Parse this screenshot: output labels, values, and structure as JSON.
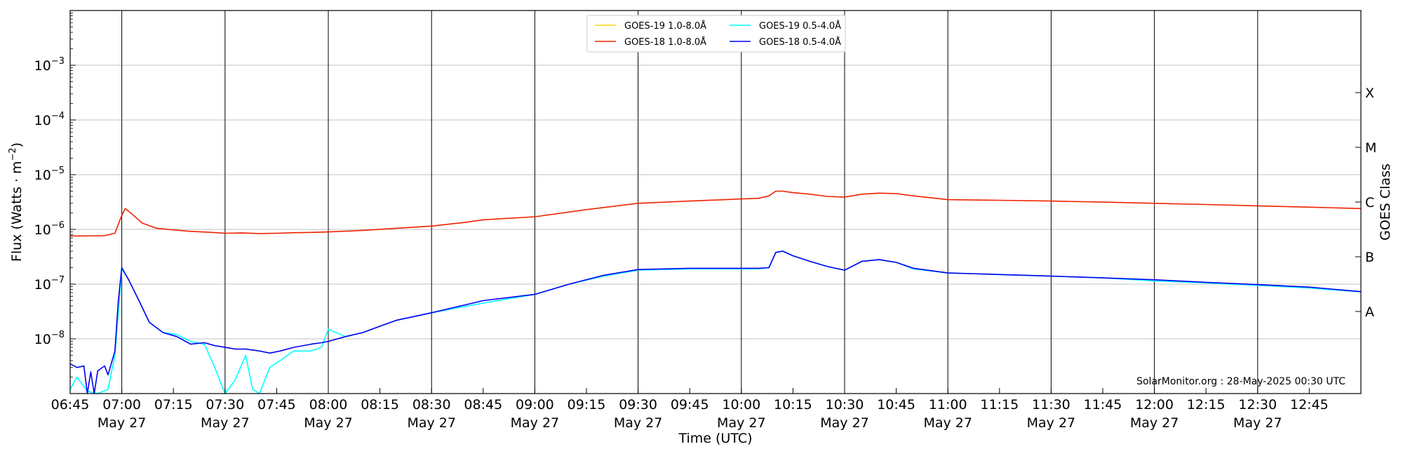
{
  "chart_data": {
    "type": "line",
    "ylabel_main": "Flux (Watts · m",
    "ylabel_sup": "−2",
    "ylabel_close": ")",
    "xlabel": "Time (UTC)",
    "right_label": "GOES Class",
    "yscale": "log",
    "ylim": [
      1e-09,
      0.01
    ],
    "xlim": [
      "06:45",
      "13:00"
    ],
    "grid": true,
    "legend_position": "top-center",
    "watermark": "SolarMonitor.org : 28-May-2025 00:30 UTC",
    "y_ticks": [
      {
        "exp": -8,
        "base": "10",
        "sup": "−8"
      },
      {
        "exp": -7,
        "base": "10",
        "sup": "−7"
      },
      {
        "exp": -6,
        "base": "10",
        "sup": "−6"
      },
      {
        "exp": -5,
        "base": "10",
        "sup": "−5"
      },
      {
        "exp": -4,
        "base": "10",
        "sup": "−4"
      },
      {
        "exp": -3,
        "base": "10",
        "sup": "−3"
      }
    ],
    "goes_classes": [
      {
        "label": "A",
        "exp": -7.5
      },
      {
        "label": "B",
        "exp": -6.5
      },
      {
        "label": "C",
        "exp": -5.5
      },
      {
        "label": "M",
        "exp": -4.5
      },
      {
        "label": "X",
        "exp": -3.5
      }
    ],
    "x_ticks": [
      {
        "time": "06:45",
        "date": ""
      },
      {
        "time": "07:00",
        "date": "May 27"
      },
      {
        "time": "07:15",
        "date": ""
      },
      {
        "time": "07:30",
        "date": "May 27"
      },
      {
        "time": "07:45",
        "date": ""
      },
      {
        "time": "08:00",
        "date": "May 27"
      },
      {
        "time": "08:15",
        "date": ""
      },
      {
        "time": "08:30",
        "date": "May 27"
      },
      {
        "time": "08:45",
        "date": ""
      },
      {
        "time": "09:00",
        "date": "May 27"
      },
      {
        "time": "09:15",
        "date": ""
      },
      {
        "time": "09:30",
        "date": "May 27"
      },
      {
        "time": "09:45",
        "date": ""
      },
      {
        "time": "10:00",
        "date": "May 27"
      },
      {
        "time": "10:15",
        "date": ""
      },
      {
        "time": "10:30",
        "date": "May 27"
      },
      {
        "time": "10:45",
        "date": ""
      },
      {
        "time": "11:00",
        "date": "May 27"
      },
      {
        "time": "11:15",
        "date": ""
      },
      {
        "time": "11:30",
        "date": "May 27"
      },
      {
        "time": "11:45",
        "date": ""
      },
      {
        "time": "12:00",
        "date": "May 27"
      },
      {
        "time": "12:15",
        "date": ""
      },
      {
        "time": "12:30",
        "date": "May 27"
      },
      {
        "time": "12:45",
        "date": ""
      }
    ],
    "series": [
      {
        "name": "GOES-19 1.0-8.0Å",
        "color": "#ffd700",
        "times": [],
        "values": []
      },
      {
        "name": "GOES-18 1.0-8.0Å",
        "color": "#ee2200",
        "times": [
          "06:45",
          "06:50",
          "06:55",
          "06:58",
          "07:00",
          "07:01",
          "07:03",
          "07:06",
          "07:10",
          "07:15",
          "07:20",
          "07:25",
          "07:30",
          "07:35",
          "07:40",
          "07:45",
          "07:50",
          "07:55",
          "08:00",
          "08:10",
          "08:20",
          "08:30",
          "08:40",
          "08:45",
          "09:00",
          "09:15",
          "09:30",
          "09:45",
          "10:00",
          "10:05",
          "10:08",
          "10:10",
          "10:12",
          "10:15",
          "10:20",
          "10:25",
          "10:30",
          "10:35",
          "10:40",
          "10:45",
          "10:50",
          "11:00",
          "11:15",
          "11:30",
          "11:45",
          "12:00",
          "12:15",
          "12:30",
          "12:45",
          "13:00"
        ],
        "values": [
          7.6e-07,
          7.6e-07,
          7.7e-07,
          8.5e-07,
          1.8e-06,
          2.4e-06,
          1.9e-06,
          1.3e-06,
          1.05e-06,
          9.8e-07,
          9.2e-07,
          8.9e-07,
          8.5e-07,
          8.6e-07,
          8.4e-07,
          8.5e-07,
          8.7e-07,
          8.8e-07,
          9e-07,
          9.6e-07,
          1.05e-06,
          1.15e-06,
          1.35e-06,
          1.5e-06,
          1.7e-06,
          2.3e-06,
          3e-06,
          3.3e-06,
          3.6e-06,
          3.7e-06,
          4.1e-06,
          5e-06,
          5e-06,
          4.7e-06,
          4.4e-06,
          4e-06,
          3.9e-06,
          4.4e-06,
          4.6e-06,
          4.5e-06,
          4.1e-06,
          3.5e-06,
          3.4e-06,
          3.3e-06,
          3.15e-06,
          3e-06,
          2.85e-06,
          2.7e-06,
          2.55e-06,
          2.4e-06
        ]
      },
      {
        "name": "GOES-19 0.5-4.0Å",
        "color": "#00ffff",
        "times": [
          "06:45",
          "06:47",
          "06:50",
          "06:53",
          "06:56",
          "06:58",
          "06:59",
          "07:00",
          "07:02",
          "07:05",
          "07:08",
          "07:12",
          "07:16",
          "07:20",
          "07:24",
          "07:27",
          "07:30",
          "07:33",
          "07:36",
          "07:38",
          "07:40",
          "07:43",
          "07:46",
          "07:50",
          "07:55",
          "07:58",
          "08:00",
          "08:05",
          "08:10",
          "08:15",
          "08:20",
          "08:30",
          "08:45",
          "09:00",
          "09:10",
          "09:20",
          "09:30",
          "09:45",
          "10:00",
          "10:05",
          "10:08",
          "10:10",
          "10:12",
          "10:15",
          "10:20",
          "10:25",
          "10:30",
          "10:35",
          "10:40",
          "10:45",
          "10:50",
          "11:00",
          "11:15",
          "11:30",
          "11:45",
          "12:00",
          "12:15",
          "12:30",
          "12:45",
          "13:00"
        ],
        "values": [
          1.2e-09,
          2e-09,
          1.1e-09,
          1e-09,
          1.2e-09,
          5e-09,
          3e-08,
          1.9e-07,
          1.2e-07,
          5e-08,
          2e-08,
          1.3e-08,
          1.2e-08,
          9e-09,
          8e-09,
          3e-09,
          1e-09,
          1.8e-09,
          5e-09,
          1.2e-09,
          1e-09,
          3e-09,
          4e-09,
          6e-09,
          6e-09,
          7e-09,
          1.5e-08,
          1.1e-08,
          1.3e-08,
          1.7e-08,
          2.2e-08,
          3e-08,
          4.5e-08,
          6.5e-08,
          1e-07,
          1.4e-07,
          1.8e-07,
          1.9e-07,
          1.9e-07,
          1.9e-07,
          2e-07,
          3.8e-07,
          4e-07,
          3.3e-07,
          2.6e-07,
          2.1e-07,
          1.8e-07,
          2.6e-07,
          2.8e-07,
          2.5e-07,
          1.9e-07,
          1.6e-07,
          1.5e-07,
          1.4e-07,
          1.3e-07,
          1.15e-07,
          1.05e-07,
          9.5e-08,
          8.5e-08,
          7.2e-08
        ]
      },
      {
        "name": "GOES-18 0.5-4.0Å",
        "color": "#0000ee",
        "times": [
          "06:45",
          "06:47",
          "06:49",
          "06:50",
          "06:51",
          "06:52",
          "06:53",
          "06:55",
          "06:56",
          "06:58",
          "06:59",
          "07:00",
          "07:02",
          "07:05",
          "07:08",
          "07:12",
          "07:16",
          "07:20",
          "07:24",
          "07:27",
          "07:30",
          "07:33",
          "07:36",
          "07:40",
          "07:43",
          "07:46",
          "07:50",
          "07:55",
          "07:58",
          "08:00",
          "08:05",
          "08:10",
          "08:15",
          "08:20",
          "08:30",
          "08:45",
          "09:00",
          "09:10",
          "09:20",
          "09:30",
          "09:45",
          "10:00",
          "10:05",
          "10:08",
          "10:10",
          "10:12",
          "10:15",
          "10:20",
          "10:25",
          "10:30",
          "10:35",
          "10:40",
          "10:45",
          "10:50",
          "11:00",
          "11:15",
          "11:30",
          "11:45",
          "12:00",
          "12:15",
          "12:30",
          "12:45",
          "13:00"
        ],
        "values": [
          3.5e-09,
          3e-09,
          3.2e-09,
          1e-09,
          2.5e-09,
          1e-09,
          2.6e-09,
          3.2e-09,
          2.2e-09,
          6e-09,
          5e-08,
          2e-07,
          1.2e-07,
          5e-08,
          2e-08,
          1.3e-08,
          1.1e-08,
          8e-09,
          8.5e-09,
          7.5e-09,
          7e-09,
          6.5e-09,
          6.5e-09,
          6e-09,
          5.5e-09,
          6e-09,
          7e-09,
          8e-09,
          8.5e-09,
          9e-09,
          1.1e-08,
          1.3e-08,
          1.7e-08,
          2.2e-08,
          3e-08,
          5e-08,
          6.5e-08,
          1e-07,
          1.45e-07,
          1.85e-07,
          1.95e-07,
          1.95e-07,
          1.95e-07,
          2e-07,
          3.8e-07,
          4e-07,
          3.3e-07,
          2.6e-07,
          2.1e-07,
          1.8e-07,
          2.6e-07,
          2.8e-07,
          2.5e-07,
          1.95e-07,
          1.6e-07,
          1.5e-07,
          1.4e-07,
          1.3e-07,
          1.2e-07,
          1.08e-07,
          9.8e-08,
          8.8e-08,
          7.3e-08
        ]
      }
    ]
  }
}
